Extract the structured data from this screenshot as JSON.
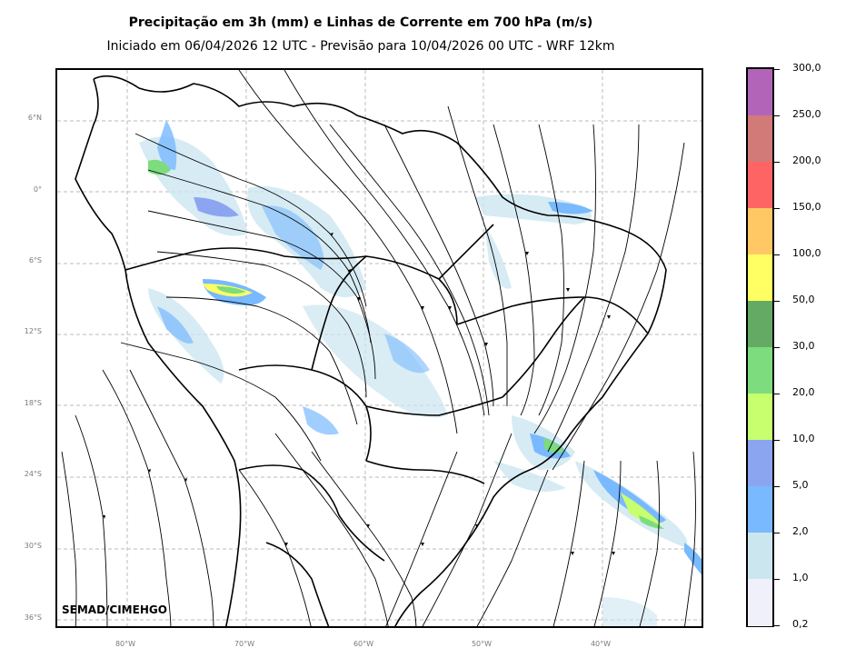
{
  "header": {
    "title": "Precipitação em 3h (mm) e Linhas de Corrente em 700 hPa (m/s)",
    "subtitle": "Iniciado em 06/04/2026 12 UTC - Previsão para 10/04/2026 00 UTC - WRF 12km"
  },
  "map": {
    "lat_labels": [
      "6°N",
      "0°",
      "6°S",
      "12°S",
      "18°S",
      "24°S",
      "30°S",
      "36°S"
    ],
    "lon_labels": [
      "80°W",
      "70°W",
      "60°W",
      "50°W",
      "40°W"
    ],
    "credit": "SEMAD/CIMEHGO",
    "gridlines": true
  },
  "colorbar": {
    "labels": [
      "300,0",
      "250,0",
      "200,0",
      "150,0",
      "100,0",
      "50,0",
      "30,0",
      "20,0",
      "10,0",
      "5,0",
      "2,0",
      "1,0",
      "0,2"
    ],
    "colors": [
      "#b264b8",
      "#d27a78",
      "#ff6464",
      "#ffc864",
      "#ffff64",
      "#64aa64",
      "#7ddc7d",
      "#c8ff6e",
      "#8ca5f0",
      "#78b9ff",
      "#cce6f0",
      "#f0f0fa"
    ]
  }
}
